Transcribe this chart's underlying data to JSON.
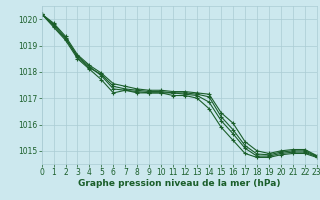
{
  "xlabel": "Graphe pression niveau de la mer (hPa)",
  "xlim": [
    0,
    23
  ],
  "ylim": [
    1014.5,
    1020.5
  ],
  "yticks": [
    1015,
    1016,
    1017,
    1018,
    1019,
    1020
  ],
  "xticks": [
    0,
    1,
    2,
    3,
    4,
    5,
    6,
    7,
    8,
    9,
    10,
    11,
    12,
    13,
    14,
    15,
    16,
    17,
    18,
    19,
    20,
    21,
    22,
    23
  ],
  "bg_color": "#cce8ee",
  "grid_color": "#aaccd4",
  "line_color": "#1a5e2a",
  "lines": [
    [
      1020.2,
      1019.7,
      1019.2,
      1018.5,
      1018.1,
      1017.7,
      1017.2,
      1017.3,
      1017.2,
      1017.2,
      1017.2,
      1017.1,
      1017.1,
      1017.0,
      1016.6,
      1015.9,
      1015.4,
      1014.9,
      1014.75,
      1014.75,
      1014.85,
      1014.9,
      1014.9,
      1014.75
    ],
    [
      1020.2,
      1019.75,
      1019.25,
      1018.6,
      1018.2,
      1017.85,
      1017.35,
      1017.3,
      1017.25,
      1017.2,
      1017.2,
      1017.2,
      1017.15,
      1017.1,
      1016.85,
      1016.15,
      1015.65,
      1015.1,
      1014.8,
      1014.8,
      1014.9,
      1014.95,
      1014.95,
      1014.78
    ],
    [
      1020.2,
      1019.8,
      1019.3,
      1018.55,
      1018.15,
      1017.9,
      1017.45,
      1017.35,
      1017.3,
      1017.25,
      1017.25,
      1017.2,
      1017.2,
      1017.15,
      1017.05,
      1016.3,
      1015.8,
      1015.2,
      1014.88,
      1014.85,
      1014.95,
      1015.0,
      1015.0,
      1014.8
    ],
    [
      1020.2,
      1019.85,
      1019.35,
      1018.65,
      1018.25,
      1017.95,
      1017.55,
      1017.45,
      1017.35,
      1017.3,
      1017.3,
      1017.25,
      1017.25,
      1017.2,
      1017.15,
      1016.45,
      1016.05,
      1015.35,
      1015.0,
      1014.9,
      1015.0,
      1015.05,
      1015.05,
      1014.82
    ]
  ],
  "marker": "+",
  "markersize": 3.5,
  "linewidth": 0.8,
  "font_color": "#1a5e2a",
  "tick_fontsize": 5.5,
  "label_fontsize": 6.5
}
